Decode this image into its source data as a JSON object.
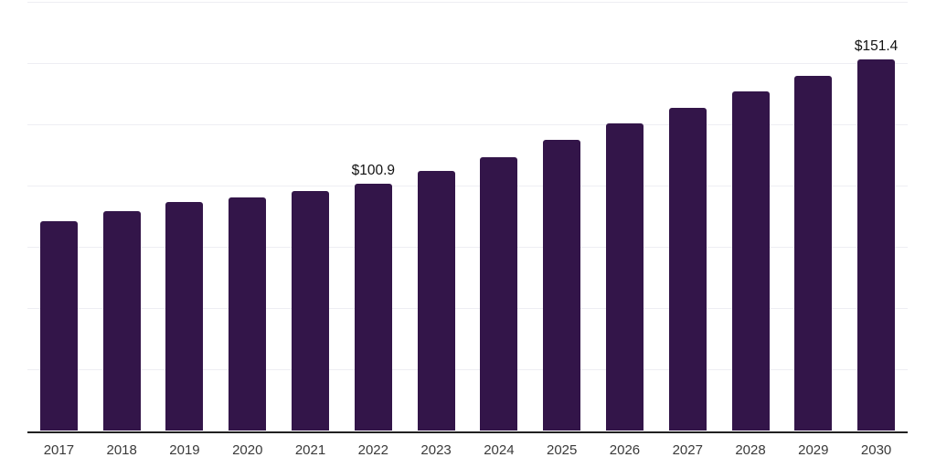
{
  "chart_data": {
    "type": "bar",
    "title": "",
    "xlabel": "",
    "ylabel": "",
    "categories": [
      "2017",
      "2018",
      "2019",
      "2020",
      "2021",
      "2022",
      "2023",
      "2024",
      "2025",
      "2026",
      "2027",
      "2028",
      "2029",
      "2030"
    ],
    "values": [
      85.7,
      89.5,
      93.5,
      95.4,
      97.8,
      100.9,
      106.2,
      111.5,
      118.6,
      125.5,
      131.6,
      138.3,
      144.7,
      151.4
    ],
    "value_prefix": "$",
    "data_labels": [
      {
        "category": "2022",
        "text": "$100.9"
      },
      {
        "category": "2030",
        "text": "$151.4"
      }
    ],
    "ylim": [
      0,
      175
    ],
    "grid_step": 25,
    "grid_on": true,
    "legend": "none"
  },
  "colors": {
    "bar_fill": "#331549",
    "gridline": "#eeeef3",
    "axis_line": "#212121",
    "x_label_text": "#3a3a3a",
    "data_label_text": "#121212",
    "background": "#ffffff"
  }
}
